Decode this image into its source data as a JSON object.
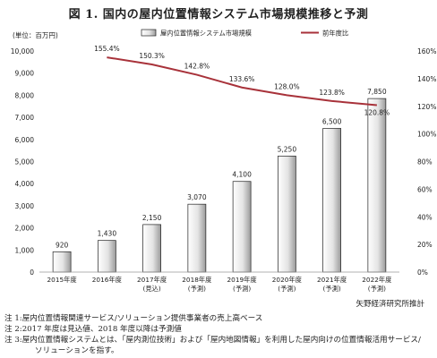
{
  "title": "図 1.  国内の屋内位置情報システム市場規模推移と予測",
  "unit_label": "(単位：百万円)",
  "source": "矢野経済研究所推計",
  "notes": [
    "注 1:屋内位置情報関連サービス/ソリューション提供事業者の売上高ベース",
    "注 2:2017 年度は見込値、2018 年度以降は予測値",
    "注 3:屋内位置情報システムとは、「屋内測位技術」および「屋内地図情報」を利用した屋内向けの位置情報活用サービス/",
    "ソリューションを指す。"
  ],
  "chart_data": {
    "type": "bar",
    "title": "国内の屋内位置情報システム市場規模推移と予測",
    "categories": [
      [
        "2015年度"
      ],
      [
        "2016年度"
      ],
      [
        "2017年度",
        "(見込)"
      ],
      [
        "2018年度",
        "(予測)"
      ],
      [
        "2019年度",
        "(予測)"
      ],
      [
        "2020年度",
        "(予測)"
      ],
      [
        "2021年度",
        "(予測)"
      ],
      [
        "2022年度",
        "(予測)"
      ]
    ],
    "series": [
      {
        "name": "屋内位置情報システム市場規模",
        "type": "bar",
        "axis": "left",
        "values": [
          920,
          1430,
          2150,
          3070,
          4100,
          5250,
          6500,
          7850
        ],
        "labels": [
          "920",
          "1,430",
          "2,150",
          "3,070",
          "4,100",
          "5,250",
          "6,500",
          "7,850"
        ]
      },
      {
        "name": "前年度比",
        "type": "line",
        "axis": "right",
        "values": [
          null,
          155.4,
          150.3,
          142.8,
          133.6,
          128.0,
          123.8,
          120.8
        ],
        "labels": [
          null,
          "155.4%",
          "150.3%",
          "142.8%",
          "133.6%",
          "128.0%",
          "123.8%",
          "120.8%"
        ],
        "color": "#a8323a"
      }
    ],
    "ylim": [
      0,
      10000
    ],
    "yticks": [
      "0",
      "1,000",
      "2,000",
      "3,000",
      "4,000",
      "5,000",
      "6,000",
      "7,000",
      "8,000",
      "9,000",
      "10,000"
    ],
    "y2lim": [
      0,
      160
    ],
    "y2ticks": [
      "0%",
      "20%",
      "40%",
      "60%",
      "80%",
      "100%",
      "120%",
      "140%",
      "160%"
    ],
    "legend_position": "top",
    "grid": false
  }
}
